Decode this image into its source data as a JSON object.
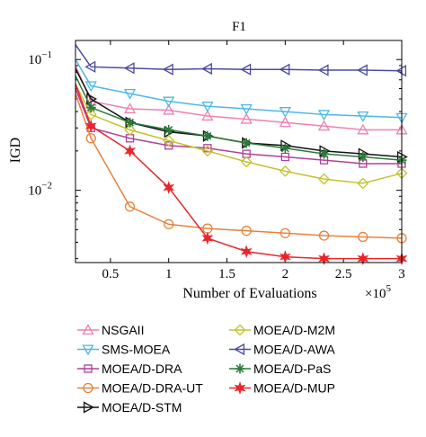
{
  "chart_data": {
    "type": "line",
    "title": "F1",
    "xlabel": "Number of Evaluations",
    "ylabel": "IGD",
    "x_multiplier_label": "×10",
    "x_multiplier_exp": "5",
    "y_scale": "log",
    "xlim": [
      0.2,
      3.0
    ],
    "ylim": [
      0.0028,
      0.14
    ],
    "xticks": [
      {
        "value": 0.5,
        "label": "0.5"
      },
      {
        "value": 1.0,
        "label": "1"
      },
      {
        "value": 1.5,
        "label": "1.5"
      },
      {
        "value": 2.0,
        "label": "2"
      },
      {
        "value": 2.5,
        "label": "2.5"
      },
      {
        "value": 3.0,
        "label": "3"
      }
    ],
    "yticks": [
      {
        "value": 0.1,
        "base": "10",
        "exp": "−1"
      },
      {
        "value": 0.01,
        "base": "10",
        "exp": "−2"
      }
    ],
    "legend_position": "below",
    "series": [
      {
        "name": "NSGAII",
        "color": "#f07fb0",
        "marker": "triangle-up",
        "x": [
          0.2,
          0.333,
          0.667,
          1.0,
          1.333,
          1.667,
          2.0,
          2.333,
          2.667,
          3.0
        ],
        "y": [
          0.09,
          0.048,
          0.042,
          0.041,
          0.037,
          0.035,
          0.033,
          0.031,
          0.029,
          0.029
        ]
      },
      {
        "name": "SMS-MOEA",
        "color": "#4db8e8",
        "marker": "triangle-down",
        "x": [
          0.2,
          0.333,
          0.667,
          1.0,
          1.333,
          1.667,
          2.0,
          2.333,
          2.667,
          3.0
        ],
        "y": [
          0.1,
          0.063,
          0.055,
          0.048,
          0.044,
          0.042,
          0.04,
          0.038,
          0.037,
          0.036
        ]
      },
      {
        "name": "MOEA/D-DRA",
        "color": "#b0409a",
        "marker": "square",
        "x": [
          0.2,
          0.333,
          0.667,
          1.0,
          1.333,
          1.667,
          2.0,
          2.333,
          2.667,
          3.0
        ],
        "y": [
          0.06,
          0.03,
          0.025,
          0.022,
          0.021,
          0.019,
          0.018,
          0.017,
          0.016,
          0.016
        ]
      },
      {
        "name": "MOEA/D-DRA-UT",
        "color": "#e8813a",
        "marker": "circle",
        "x": [
          0.2,
          0.333,
          0.667,
          1.0,
          1.333,
          1.667,
          2.0,
          2.333,
          2.667,
          3.0
        ],
        "y": [
          0.055,
          0.025,
          0.0075,
          0.0055,
          0.0051,
          0.0049,
          0.0047,
          0.0045,
          0.0044,
          0.0043
        ]
      },
      {
        "name": "MOEA/D-STM",
        "color": "#111111",
        "marker": "triangle-right",
        "x": [
          0.2,
          0.333,
          0.667,
          1.0,
          1.333,
          1.667,
          2.0,
          2.333,
          2.667,
          3.0
        ],
        "y": [
          0.085,
          0.05,
          0.033,
          0.028,
          0.026,
          0.023,
          0.022,
          0.02,
          0.019,
          0.018
        ]
      },
      {
        "name": "MOEA/D-M2M",
        "color": "#c2c22e",
        "marker": "diamond",
        "x": [
          0.2,
          0.333,
          0.667,
          1.0,
          1.333,
          1.667,
          2.0,
          2.333,
          2.667,
          3.0
        ],
        "y": [
          0.065,
          0.038,
          0.029,
          0.024,
          0.02,
          0.0165,
          0.014,
          0.0122,
          0.0113,
          0.0135
        ]
      },
      {
        "name": "MOEA/D-AWA",
        "color": "#4a4aa0",
        "marker": "triangle-left",
        "x": [
          0.2,
          0.333,
          0.667,
          1.0,
          1.333,
          1.667,
          2.0,
          2.333,
          2.667,
          3.0
        ],
        "y": [
          0.13,
          0.088,
          0.086,
          0.084,
          0.085,
          0.084,
          0.084,
          0.083,
          0.083,
          0.082
        ]
      },
      {
        "name": "MOEA/D-PaS",
        "color": "#2a7a3a",
        "marker": "asterisk",
        "x": [
          0.2,
          0.333,
          0.667,
          1.0,
          1.333,
          1.667,
          2.0,
          2.333,
          2.667,
          3.0
        ],
        "y": [
          0.075,
          0.043,
          0.033,
          0.029,
          0.026,
          0.023,
          0.021,
          0.019,
          0.018,
          0.017
        ]
      },
      {
        "name": "MOEA/D-MUP",
        "color": "#e8262a",
        "marker": "star",
        "x": [
          0.2,
          0.333,
          0.667,
          1.0,
          1.333,
          1.667,
          2.0,
          2.333,
          2.667,
          3.0
        ],
        "y": [
          0.065,
          0.031,
          0.02,
          0.0105,
          0.0043,
          0.0034,
          0.0031,
          0.003,
          0.003,
          0.003
        ]
      }
    ]
  }
}
